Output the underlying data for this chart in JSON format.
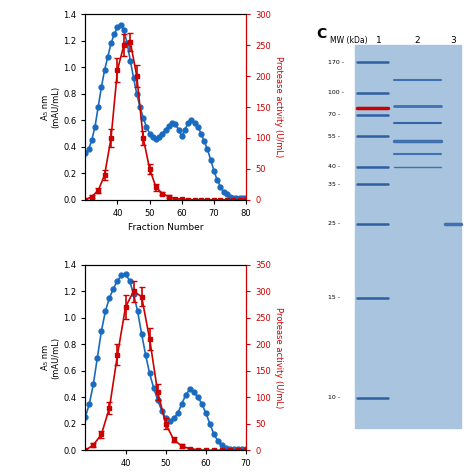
{
  "top_plot": {
    "x_start": 30,
    "x_end": 80,
    "xlabel": "Fraction Number",
    "ylabel_left": "A280 (0.5 nm)\n(mAU/mL)",
    "ylabel_right": "Protease activity (U/mL)",
    "xlim": [
      30,
      80
    ],
    "ylim_left": [
      0,
      1.4
    ],
    "ylim_right": [
      0,
      300
    ],
    "yticks_right": [
      0,
      50,
      100,
      150,
      200,
      250,
      300
    ],
    "xticks": [
      40,
      50,
      60,
      70,
      80
    ],
    "blue_x": [
      30,
      31,
      32,
      33,
      34,
      35,
      36,
      37,
      38,
      39,
      40,
      41,
      42,
      43,
      44,
      45,
      46,
      47,
      48,
      49,
      50,
      51,
      52,
      53,
      54,
      55,
      56,
      57,
      58,
      59,
      60,
      61,
      62,
      63,
      64,
      65,
      66,
      67,
      68,
      69,
      70,
      71,
      72,
      73,
      74,
      75,
      76,
      77,
      78,
      79,
      80
    ],
    "blue_y": [
      0.35,
      0.38,
      0.45,
      0.55,
      0.7,
      0.85,
      0.98,
      1.08,
      1.18,
      1.25,
      1.3,
      1.32,
      1.28,
      1.18,
      1.05,
      0.92,
      0.8,
      0.7,
      0.62,
      0.55,
      0.5,
      0.47,
      0.46,
      0.47,
      0.5,
      0.53,
      0.56,
      0.58,
      0.57,
      0.53,
      0.48,
      0.53,
      0.58,
      0.6,
      0.58,
      0.55,
      0.5,
      0.44,
      0.38,
      0.3,
      0.22,
      0.15,
      0.1,
      0.06,
      0.04,
      0.02,
      0.01,
      0.01,
      0.01,
      0.01,
      0.01
    ],
    "red_x": [
      30,
      32,
      34,
      36,
      38,
      40,
      42,
      44,
      46,
      48,
      50,
      52,
      54,
      56,
      58,
      60,
      62,
      64,
      66,
      68,
      70,
      72,
      74,
      76,
      78,
      80
    ],
    "red_y": [
      0,
      5,
      15,
      40,
      100,
      210,
      250,
      255,
      200,
      100,
      50,
      20,
      10,
      5,
      2,
      1,
      0,
      0,
      0,
      0,
      0,
      0,
      0,
      0,
      0,
      0
    ],
    "red_errors": [
      0,
      2,
      4,
      8,
      15,
      20,
      18,
      15,
      18,
      12,
      8,
      5,
      3,
      2,
      1,
      1,
      0,
      0,
      0,
      0,
      0,
      0,
      0,
      0,
      0,
      0
    ]
  },
  "bottom_plot": {
    "x_start": 30,
    "x_end": 70,
    "xlabel": "Fraction Number",
    "ylabel_left": "A280 (nm)\n(mAU/mL)",
    "ylabel_right": "Protease activity (U/mL)",
    "xlim": [
      30,
      70
    ],
    "ylim_left": [
      0,
      1.4
    ],
    "ylim_right": [
      0,
      350
    ],
    "yticks_right": [
      0,
      50,
      100,
      150,
      200,
      250,
      300,
      350
    ],
    "xticks": [
      40,
      50,
      60,
      70
    ],
    "blue_x": [
      30,
      31,
      32,
      33,
      34,
      35,
      36,
      37,
      38,
      39,
      40,
      41,
      42,
      43,
      44,
      45,
      46,
      47,
      48,
      49,
      50,
      51,
      52,
      53,
      54,
      55,
      56,
      57,
      58,
      59,
      60,
      61,
      62,
      63,
      64,
      65,
      66,
      67,
      68,
      69,
      70
    ],
    "blue_y": [
      0.25,
      0.35,
      0.5,
      0.7,
      0.9,
      1.05,
      1.15,
      1.22,
      1.28,
      1.32,
      1.33,
      1.28,
      1.18,
      1.05,
      0.88,
      0.72,
      0.58,
      0.47,
      0.38,
      0.3,
      0.24,
      0.22,
      0.24,
      0.28,
      0.35,
      0.42,
      0.46,
      0.44,
      0.4,
      0.35,
      0.28,
      0.2,
      0.12,
      0.07,
      0.04,
      0.02,
      0.01,
      0.01,
      0.01,
      0.01,
      0.01
    ],
    "red_x": [
      30,
      32,
      34,
      36,
      38,
      40,
      42,
      44,
      46,
      48,
      50,
      52,
      54,
      56,
      58,
      60,
      62,
      64,
      66,
      68,
      70
    ],
    "red_y": [
      0,
      10,
      30,
      80,
      180,
      270,
      300,
      290,
      210,
      110,
      50,
      20,
      8,
      3,
      1,
      0,
      0,
      0,
      0,
      0,
      0
    ],
    "red_errors": [
      0,
      3,
      6,
      12,
      20,
      22,
      20,
      18,
      20,
      15,
      10,
      5,
      3,
      2,
      1,
      0,
      0,
      0,
      0,
      0,
      0
    ]
  },
  "blue_color": "#1a6bbf",
  "red_color": "#cc0000",
  "background_color": "#ffffff"
}
